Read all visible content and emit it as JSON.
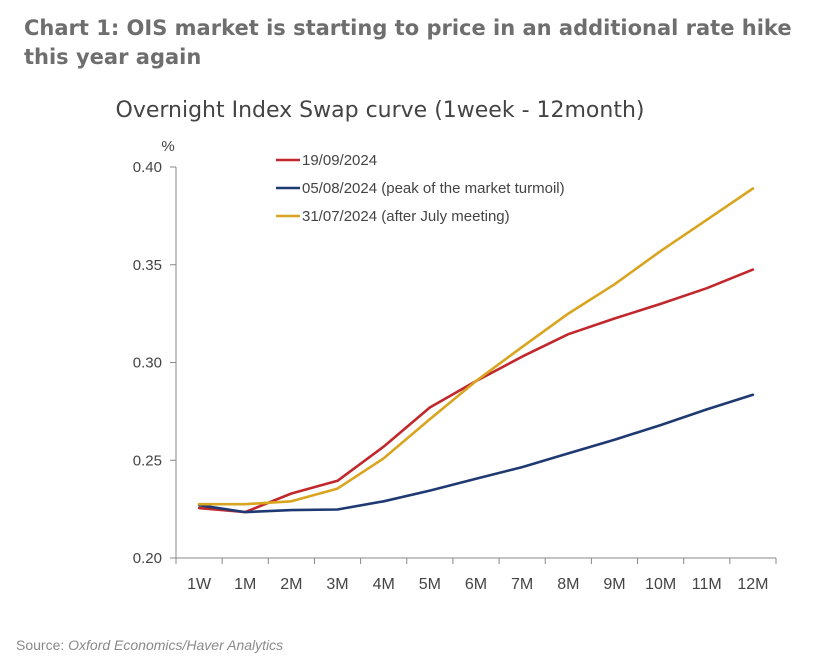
{
  "heading": "Chart 1: OIS market is starting to price in an additional rate hike this year again",
  "source": {
    "prefix": "Source:",
    "name": "Oxford Economics/Haver Analytics"
  },
  "chart_data": {
    "type": "line",
    "title": "Overnight Index Swap curve (1week - 12month)",
    "ylabel": "%",
    "xlabel": "",
    "categories": [
      "1W",
      "1M",
      "2M",
      "3M",
      "4M",
      "5M",
      "6M",
      "7M",
      "8M",
      "9M",
      "10M",
      "11M",
      "12M"
    ],
    "ylim": [
      0.2,
      0.4
    ],
    "yticks": [
      "0.20",
      "0.25",
      "0.30",
      "0.35",
      "0.40"
    ],
    "grid": false,
    "legend": "top-left",
    "series": [
      {
        "name": "19/09/2024",
        "color": "#c0282c",
        "values": [
          0.2255,
          0.2235,
          0.233,
          0.2395,
          0.257,
          0.277,
          0.2905,
          0.303,
          0.3145,
          0.3225,
          0.33,
          0.338,
          0.3475
        ]
      },
      {
        "name": "05/08/2024 (peak of the market turmoil)",
        "color": "#1f3a72",
        "values": [
          0.227,
          0.2235,
          0.2245,
          0.2248,
          0.229,
          0.2345,
          0.2405,
          0.2465,
          0.2535,
          0.2605,
          0.268,
          0.276,
          0.2835
        ]
      },
      {
        "name": "31/07/2024 (after July meeting)",
        "color": "#d9a521",
        "values": [
          0.2275,
          0.2275,
          0.229,
          0.2355,
          0.251,
          0.271,
          0.2905,
          0.308,
          0.325,
          0.34,
          0.357,
          0.373,
          0.389
        ]
      }
    ]
  }
}
